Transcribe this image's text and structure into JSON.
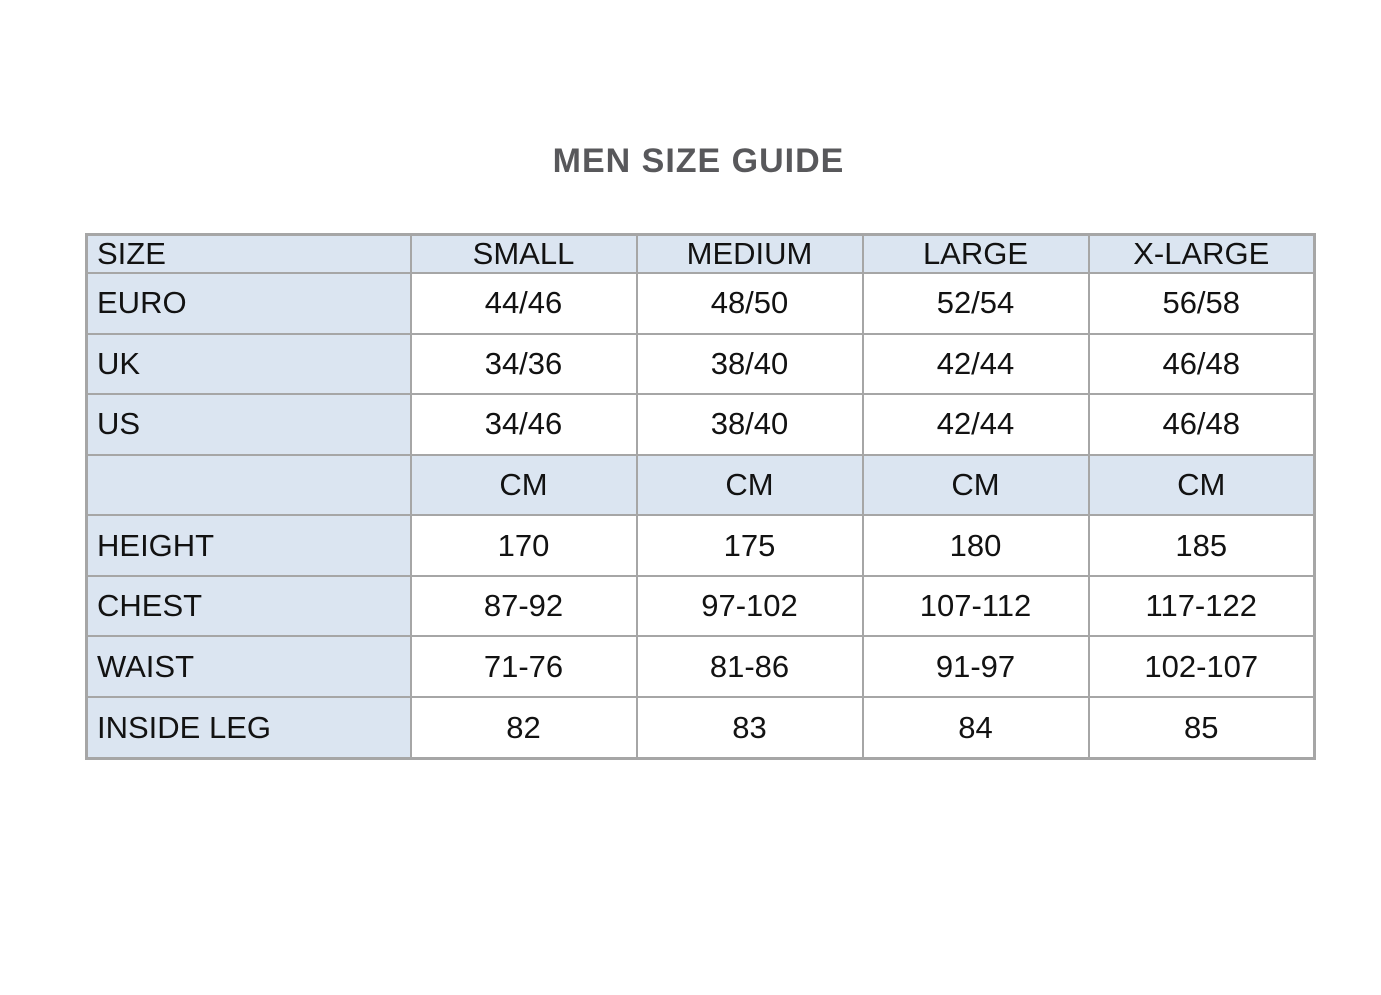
{
  "title": "MEN SIZE GUIDE",
  "colors": {
    "shaded_cell_bg": "#dbe5f1",
    "grid_border": "#a6a6a6",
    "title_text": "#58585b",
    "cell_text": "#121212",
    "page_bg": "#ffffff"
  },
  "table": {
    "columns": [
      "SIZE",
      "SMALL",
      "MEDIUM",
      "LARGE",
      "X-LARGE"
    ],
    "rows": [
      {
        "label": "EURO",
        "values": [
          "44/46",
          "48/50",
          "52/54",
          "56/58"
        ]
      },
      {
        "label": "UK",
        "values": [
          "34/36",
          "38/40",
          "42/44",
          "46/48"
        ]
      },
      {
        "label": "US",
        "values": [
          "34/46",
          "38/40",
          "42/44",
          "46/48"
        ]
      },
      {
        "label": "",
        "values": [
          "CM",
          "CM",
          "CM",
          "CM"
        ]
      },
      {
        "label": "HEIGHT",
        "values": [
          "170",
          "175",
          "180",
          "185"
        ]
      },
      {
        "label": "CHEST",
        "values": [
          "87-92",
          "97-102",
          "107-112",
          "117-122"
        ]
      },
      {
        "label": "WAIST",
        "values": [
          "71-76",
          "81-86",
          "91-97",
          "102-107"
        ]
      },
      {
        "label": "INSIDE LEG",
        "values": [
          "82",
          "83",
          "84",
          "85"
        ]
      }
    ]
  }
}
